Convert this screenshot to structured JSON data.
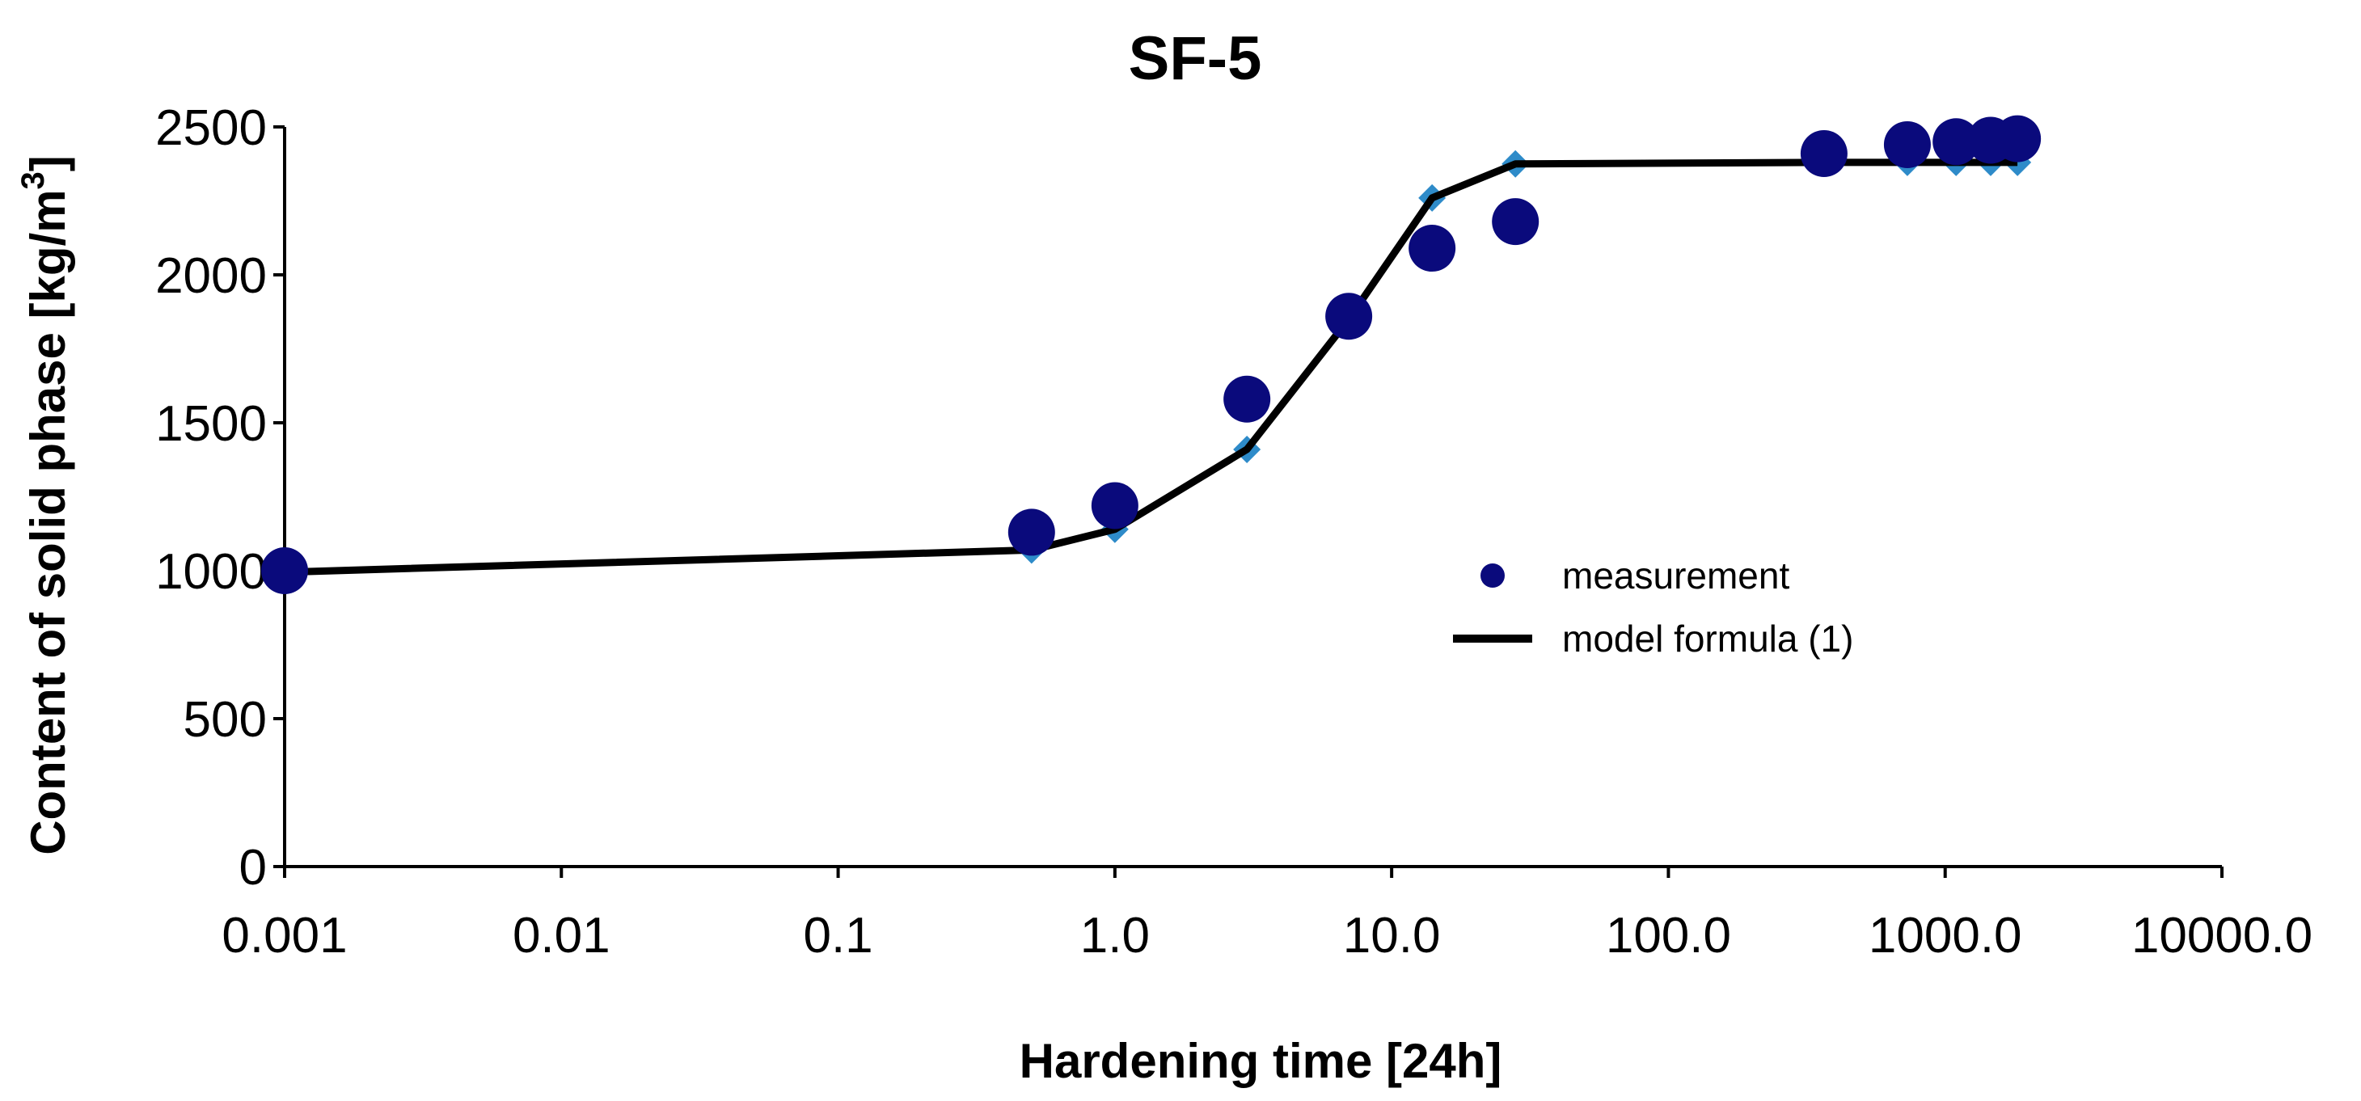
{
  "chart_data": {
    "type": "scatter",
    "title": "SF-5",
    "xlabel": "Hardening time [24h]",
    "ylabel_main": "Content of solid phase  [kg/m",
    "ylabel_sup": "3",
    "ylabel_close": "]",
    "x_scale": "log",
    "xlim": [
      0.001,
      10000
    ],
    "ylim": [
      0,
      2500
    ],
    "x_ticks": [
      0.001,
      0.01,
      0.1,
      1,
      10,
      100,
      1000,
      10000
    ],
    "x_tick_labels": [
      "0.001",
      "0.01",
      "0.1",
      "1.0",
      "10.0",
      "100.0",
      "1000.0",
      "10000.0"
    ],
    "y_ticks": [
      0,
      500,
      1000,
      1500,
      2000,
      2500
    ],
    "y_tick_labels": [
      "0",
      "500",
      "1000",
      "1500",
      "2000",
      "2500"
    ],
    "grid": false,
    "legend_position": "center-right",
    "legend": {
      "measurement": "measurement",
      "model": "model formula (1)"
    },
    "colors": {
      "measurement": "#0a0a7c",
      "model_line": "#000000",
      "model_marker": "#2e8bc9"
    },
    "series": [
      {
        "name": "measurement",
        "type": "scatter",
        "points": [
          {
            "x": 0.001,
            "y": 1000
          },
          {
            "x": 0.5,
            "y": 1130
          },
          {
            "x": 1,
            "y": 1220
          },
          {
            "x": 3,
            "y": 1580
          },
          {
            "x": 7,
            "y": 1860
          },
          {
            "x": 14,
            "y": 2090
          },
          {
            "x": 28,
            "y": 2180
          },
          {
            "x": 365,
            "y": 2410
          },
          {
            "x": 730,
            "y": 2440
          },
          {
            "x": 1095,
            "y": 2450
          },
          {
            "x": 1460,
            "y": 2455
          },
          {
            "x": 1825,
            "y": 2460
          }
        ]
      },
      {
        "name": "model formula (1)",
        "type": "line",
        "points": [
          {
            "x": 0.001,
            "y": 995
          },
          {
            "x": 0.5,
            "y": 1070
          },
          {
            "x": 1,
            "y": 1140
          },
          {
            "x": 3,
            "y": 1410
          },
          {
            "x": 7,
            "y": 1850
          },
          {
            "x": 14,
            "y": 2260
          },
          {
            "x": 28,
            "y": 2375
          },
          {
            "x": 365,
            "y": 2380
          },
          {
            "x": 730,
            "y": 2380
          },
          {
            "x": 1095,
            "y": 2380
          },
          {
            "x": 1460,
            "y": 2380
          },
          {
            "x": 1825,
            "y": 2380
          }
        ]
      }
    ]
  }
}
